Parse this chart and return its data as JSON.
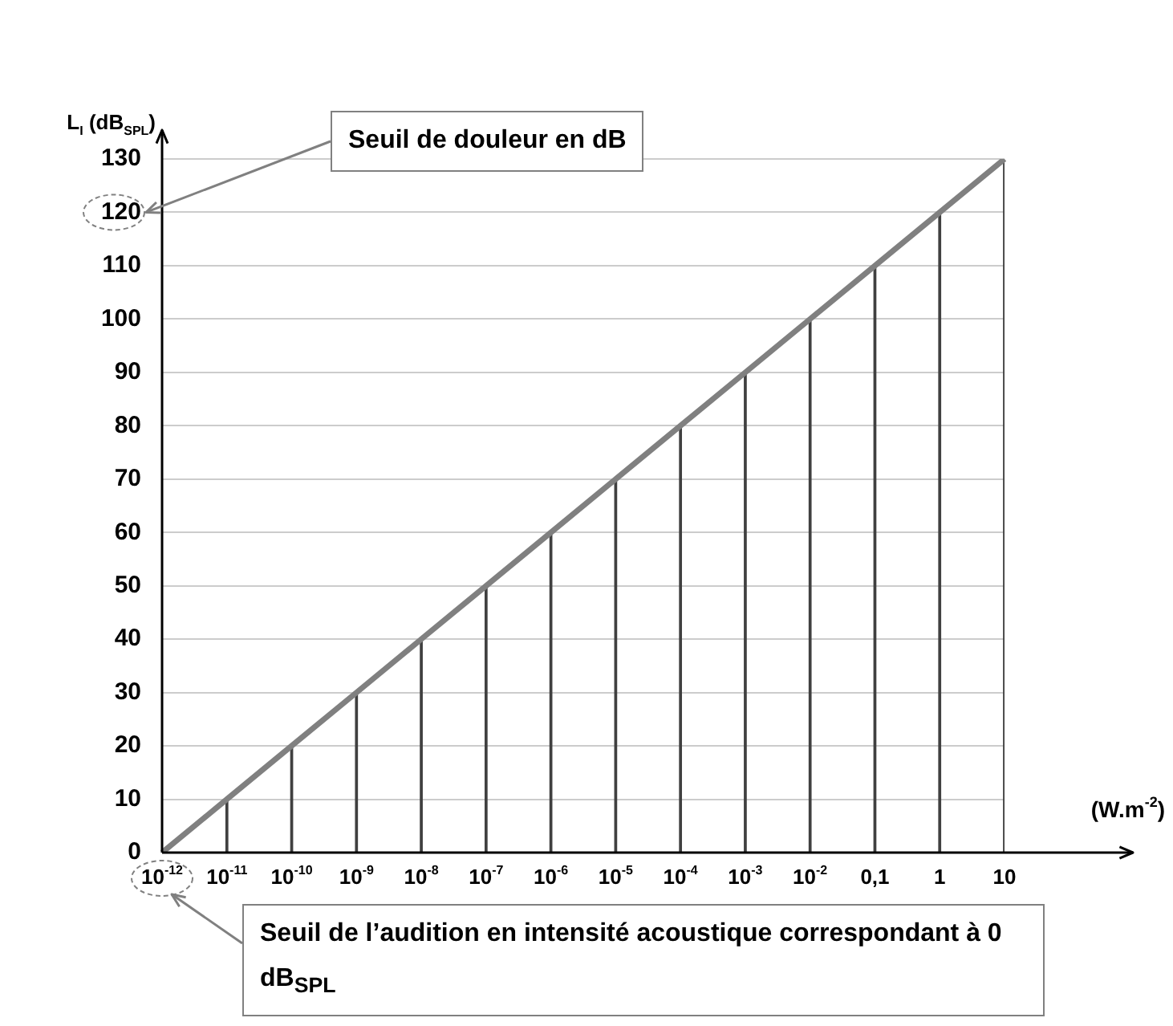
{
  "chart_data": {
    "type": "line",
    "ylabel": "L$_{I}$ (dB$_{SPL}$)",
    "xlabel": "(W.m$^{-2}$)",
    "categories": [
      "10$^{-12}$",
      "10$^{-11}$",
      "10$^{-10}$",
      "10$^{-9}$",
      "10$^{-8}$",
      "10$^{-7}$",
      "10$^{-6}$",
      "10$^{-5}$",
      "10$^{-4}$",
      "10$^{-3}$",
      "10$^{-2}$",
      "0,1",
      "1",
      "10"
    ],
    "series": [
      {
        "type": "bar",
        "color": "#404040",
        "values": [
          0,
          10,
          20,
          30,
          40,
          50,
          60,
          70,
          80,
          90,
          100,
          110,
          120,
          130
        ]
      },
      {
        "color": "#808080",
        "values": [
          0,
          10,
          20,
          30,
          40,
          50,
          60,
          70,
          80,
          90,
          100,
          110,
          120,
          130
        ]
      }
    ],
    "ylim": [
      0,
      130
    ],
    "yticks": [
      0,
      10,
      20,
      30,
      40,
      50,
      60,
      70,
      80,
      90,
      100,
      110,
      120,
      130
    ],
    "grid": "y",
    "legend": false,
    "marker": "none",
    "line_style": "solid",
    "annotations": [
      "Seuil de douleur  en dB",
      "Seuil de l’audition en intensité acoustique correspondant à 0 dB$_{SPL}$"
    ]
  }
}
